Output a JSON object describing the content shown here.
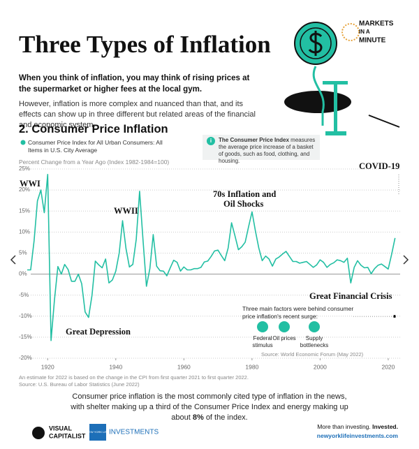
{
  "header": {
    "title": "Three Types of Inflation",
    "logo": [
      "MARKETS",
      "IN A",
      "MINUTE"
    ]
  },
  "intro": {
    "lead": "When you think of inflation, you may think of rising prices at the supermarket or higher fees at the local gym.",
    "body": "However, inflation is more complex and nuanced than that, and its effects can show up in three different but related areas of the financial and economic system."
  },
  "section_title": "2. Consumer Price Inflation",
  "info_box": {
    "icon": "i",
    "bold": "The Consumer Price Index",
    "text": "measures the average price increase of a basket of goods, such as food, clothing, and housing."
  },
  "chart_data": {
    "type": "line",
    "y_axis_label": "Percent Change from a Year Ago (Index 1982-1984=100)",
    "x": [
      1914,
      1915,
      1916,
      1917,
      1918,
      1919,
      1920,
      1921,
      1922,
      1923,
      1924,
      1925,
      1926,
      1927,
      1928,
      1929,
      1930,
      1931,
      1932,
      1933,
      1934,
      1935,
      1936,
      1937,
      1938,
      1939,
      1940,
      1941,
      1942,
      1943,
      1944,
      1945,
      1946,
      1947,
      1948,
      1949,
      1950,
      1951,
      1952,
      1953,
      1954,
      1955,
      1956,
      1957,
      1958,
      1959,
      1960,
      1961,
      1962,
      1963,
      1964,
      1965,
      1966,
      1967,
      1968,
      1969,
      1970,
      1971,
      1972,
      1973,
      1974,
      1975,
      1976,
      1977,
      1978,
      1979,
      1980,
      1981,
      1982,
      1983,
      1984,
      1985,
      1986,
      1987,
      1988,
      1989,
      1990,
      1991,
      1992,
      1993,
      1994,
      1995,
      1996,
      1997,
      1998,
      1999,
      2000,
      2001,
      2002,
      2003,
      2004,
      2005,
      2006,
      2007,
      2008,
      2009,
      2010,
      2011,
      2012,
      2013,
      2014,
      2015,
      2016,
      2017,
      2018,
      2019,
      2020,
      2021,
      2022
    ],
    "series": [
      {
        "name": "Consumer Price Index for All Urban Consumers: All Items in U.S. City Average",
        "color": "#22bfa3",
        "values": [
          1.0,
          1.0,
          7.9,
          17.4,
          20.0,
          14.6,
          23.7,
          -15.8,
          -6.1,
          1.8,
          0.0,
          2.3,
          1.1,
          -1.7,
          -1.7,
          0.0,
          -2.3,
          -9.0,
          -10.3,
          -5.1,
          3.1,
          2.2,
          1.5,
          3.6,
          -2.1,
          -1.4,
          0.7,
          5.0,
          12.7,
          6.1,
          1.7,
          2.3,
          8.3,
          19.7,
          8.1,
          -2.9,
          1.3,
          9.4,
          1.9,
          0.8,
          0.7,
          -0.4,
          1.5,
          3.3,
          2.8,
          0.7,
          1.7,
          1.0,
          1.0,
          1.3,
          1.3,
          1.6,
          2.9,
          3.1,
          4.2,
          5.5,
          5.7,
          4.4,
          3.2,
          6.2,
          12.2,
          9.1,
          5.8,
          6.5,
          7.6,
          11.3,
          14.8,
          10.3,
          6.2,
          3.2,
          4.3,
          3.6,
          1.9,
          3.6,
          4.1,
          4.8,
          5.4,
          4.2,
          3.0,
          3.0,
          2.6,
          2.8,
          3.0,
          2.3,
          1.6,
          2.2,
          3.4,
          2.8,
          1.6,
          2.3,
          2.7,
          3.4,
          3.2,
          2.8,
          3.8,
          -2.1,
          1.6,
          3.2,
          2.1,
          1.5,
          1.6,
          0.1,
          1.3,
          2.1,
          2.4,
          1.8,
          1.2,
          4.7,
          8.6
        ]
      }
    ],
    "xlim": [
      1914,
      2023.5
    ],
    "xticks": [
      1920,
      1940,
      1960,
      1980,
      2000,
      2020
    ],
    "ylim": [
      -20,
      25
    ],
    "yticks": [
      {
        "value": -20,
        "label": "-20%"
      },
      {
        "value": -15,
        "label": "-15%"
      },
      {
        "value": -10,
        "label": "-10%"
      },
      {
        "value": -5,
        "label": "-5%"
      },
      {
        "value": 0,
        "label": "0%"
      },
      {
        "value": 5,
        "label": "5%"
      },
      {
        "value": 10,
        "label": "10%"
      },
      {
        "value": 15,
        "label": "15%"
      },
      {
        "value": 20,
        "label": "20%"
      },
      {
        "value": 25,
        "label": "25%"
      }
    ],
    "grid": true,
    "annotations": [
      [
        "WWI"
      ],
      [
        "WWII"
      ],
      [
        "70s Inflation and",
        "Oil Shocks"
      ],
      [
        "COVID-19"
      ],
      [
        "Great Depression"
      ],
      [
        "Great Financial Crisis"
      ]
    ]
  },
  "factors": {
    "title": "Three main factors were behind consumer price inflation's recent surge:",
    "items": [
      "Federal stimulus",
      "Oil prices",
      "Supply bottlenecks"
    ],
    "source": "Source: World Economic Forum (May 2022)"
  },
  "notes": [
    "An estimate for 2022 is based on the change in the CPI from first quarter 2021 to first quarter 2022.",
    "Source: U.S. Bureau of Labor Statistics (June 2022)"
  ],
  "summary": {
    "before": "Consumer price inflation is the most commonly cited type of inflation in the news, with shelter making up a third of the Consumer Price Index and energy making up about",
    "bold": "8%",
    "after": "of the index."
  },
  "footer": {
    "vc": [
      "VISUAL",
      "CAPITALIST"
    ],
    "nyl_box": "NEW YORK LIFE",
    "nyl": "INVESTMENTS",
    "tagline": "More than investing.",
    "tagline_bold": "Invested.",
    "url": "newyorklifeinvestments.com"
  }
}
